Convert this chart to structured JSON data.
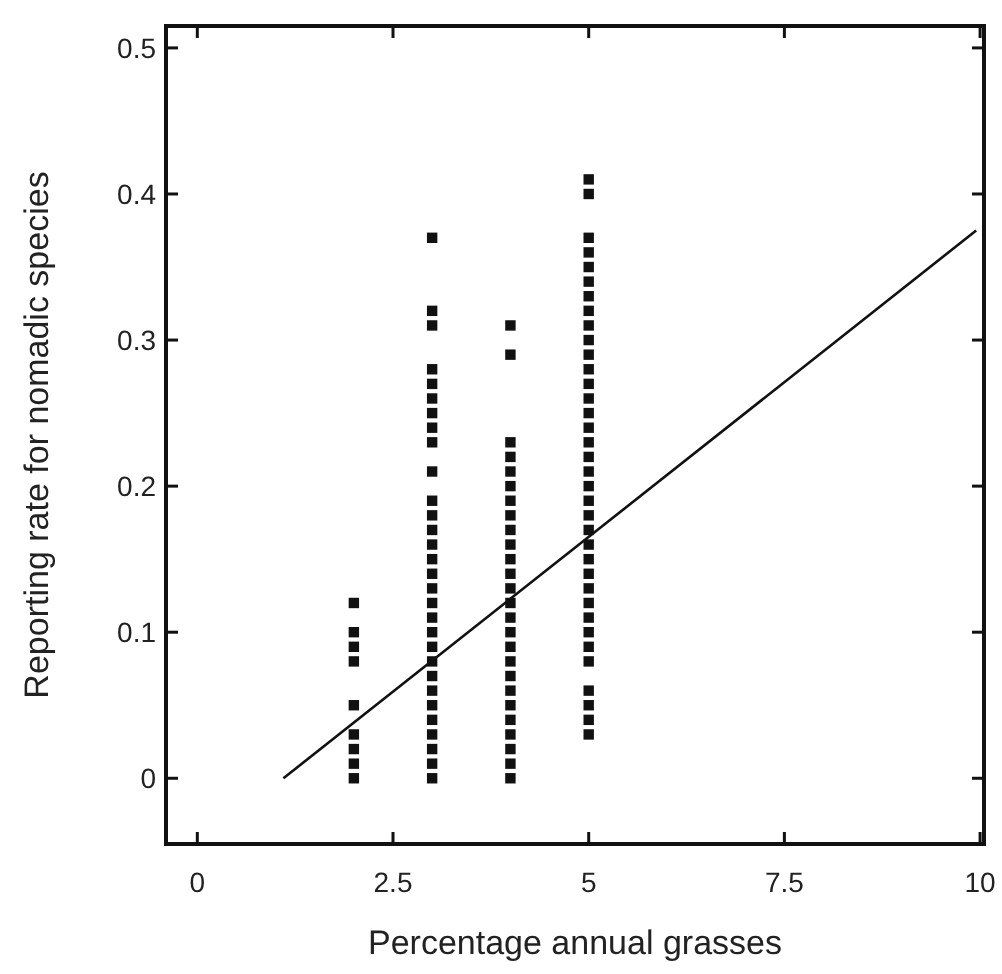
{
  "chart_data": {
    "type": "scatter",
    "xlabel": "Percentage annual grasses",
    "ylabel": "Reporting rate for nomadic species",
    "xlim": [
      -0.4,
      10.05
    ],
    "ylim": [
      -0.045,
      0.515
    ],
    "xticks": [
      0,
      2.5,
      5,
      7.5,
      10
    ],
    "yticks": [
      0,
      0.1,
      0.2,
      0.3,
      0.4,
      0.5
    ],
    "marker": "square",
    "grid": false,
    "series": [
      {
        "color": "#111111",
        "x": [
          2,
          2,
          2,
          2,
          2,
          2,
          2,
          2,
          2,
          3,
          3,
          3,
          3,
          3,
          3,
          3,
          3,
          3,
          3,
          3,
          3,
          3,
          3,
          3,
          3,
          3,
          3,
          3,
          3,
          3,
          3,
          3,
          3,
          3,
          3,
          3,
          3,
          3,
          3,
          4,
          4,
          4,
          4,
          4,
          4,
          4,
          4,
          4,
          4,
          4,
          4,
          4,
          4,
          4,
          4,
          4,
          4,
          4,
          4,
          4,
          4,
          4,
          4,
          4,
          4,
          5,
          5,
          5,
          5,
          5,
          5,
          5,
          5,
          5,
          5,
          5,
          5,
          5,
          5,
          5,
          5,
          5,
          5,
          5,
          5,
          5,
          5,
          5,
          5,
          5,
          5,
          5,
          5,
          5,
          5,
          5,
          5,
          5,
          5,
          5,
          5
        ],
        "values": [
          0.12,
          0.1,
          0.09,
          0.08,
          0.05,
          0.03,
          0.02,
          0.01,
          0,
          0.37,
          0.32,
          0.31,
          0.28,
          0.27,
          0.26,
          0.25,
          0.24,
          0.23,
          0.21,
          0.19,
          0.18,
          0.17,
          0.16,
          0.15,
          0.14,
          0.13,
          0.12,
          0.11,
          0.1,
          0.09,
          0.08,
          0.07,
          0.06,
          0.05,
          0.04,
          0.03,
          0.02,
          0.01,
          0,
          0.31,
          0.29,
          0.23,
          0.22,
          0.21,
          0.2,
          0.19,
          0.18,
          0.17,
          0.16,
          0.15,
          0.14,
          0.13,
          0.12,
          0.11,
          0.1,
          0.09,
          0.08,
          0.07,
          0.06,
          0.05,
          0.04,
          0.03,
          0.02,
          0.01,
          0,
          0.41,
          0.4,
          0.37,
          0.36,
          0.35,
          0.34,
          0.33,
          0.32,
          0.31,
          0.3,
          0.29,
          0.28,
          0.27,
          0.26,
          0.25,
          0.24,
          0.23,
          0.22,
          0.21,
          0.2,
          0.19,
          0.18,
          0.17,
          0.16,
          0.15,
          0.14,
          0.13,
          0.12,
          0.11,
          0.1,
          0.09,
          0.08,
          0.06,
          0.05,
          0.04,
          0.03
        ]
      },
      {
        "type": "line",
        "color": "#111111",
        "x": [
          1.1,
          9.95
        ],
        "values": [
          0,
          0.375
        ],
        "marker": "none"
      }
    ]
  }
}
